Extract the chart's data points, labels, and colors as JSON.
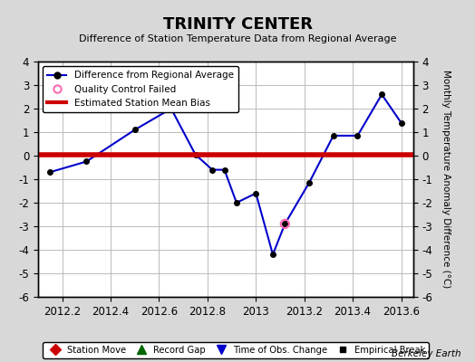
{
  "title": "TRINITY CENTER",
  "subtitle": "Difference of Station Temperature Data from Regional Average",
  "ylabel_right": "Monthly Temperature Anomaly Difference (°C)",
  "credit": "Berkeley Earth",
  "xlim": [
    2012.1,
    2013.65
  ],
  "ylim": [
    -6,
    4
  ],
  "yticks": [
    -6,
    -5,
    -4,
    -3,
    -2,
    -1,
    0,
    1,
    2,
    3,
    4
  ],
  "xticks": [
    2012.2,
    2012.4,
    2012.6,
    2012.8,
    2013.0,
    2013.2,
    2013.4,
    2013.6
  ],
  "xtick_labels": [
    "2012.2",
    "2012.4",
    "2012.6",
    "2012.8",
    "2013",
    "2013.2",
    "2013.4",
    "2013.6"
  ],
  "line_x": [
    2012.15,
    2012.3,
    2012.5,
    2012.65,
    2012.75,
    2012.82,
    2012.87,
    2012.92,
    2013.0,
    2013.07,
    2013.12,
    2013.22,
    2013.32,
    2013.42,
    2013.52,
    2013.6
  ],
  "line_y": [
    -0.7,
    -0.25,
    1.1,
    2.0,
    0.05,
    -0.6,
    -0.6,
    -2.0,
    -1.6,
    -4.2,
    -2.9,
    -1.15,
    0.85,
    0.85,
    2.6,
    1.4
  ],
  "qc_fail_x": [
    2013.12
  ],
  "qc_fail_y": [
    -2.9
  ],
  "bias_y": 0.05,
  "bias_color": "#cc0000",
  "line_color": "#0000cc",
  "marker_color": "#000000",
  "bg_color": "#d8d8d8",
  "plot_bg_color": "#ffffff",
  "grid_color": "#bbbbbb"
}
